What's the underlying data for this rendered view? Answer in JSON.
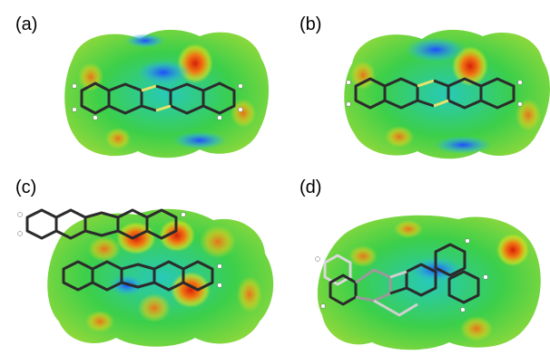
{
  "panels": [
    {
      "label": "(a)"
    },
    {
      "label": "(b)"
    },
    {
      "label": "(c)"
    },
    {
      "label": "(d)"
    }
  ],
  "colors": {
    "surface_green": "#3dcf3d",
    "surface_cyan": "#19c8c0",
    "surface_blue": "#1f5bff",
    "hot_red": "#d81f0b",
    "warm_orange": "#f07a12",
    "warm_yellow": "#e8e11a",
    "molecule_stick": "#2b2b2b",
    "hydrogen": "#ffffff",
    "sulfur_bond": "#e8e36c"
  }
}
